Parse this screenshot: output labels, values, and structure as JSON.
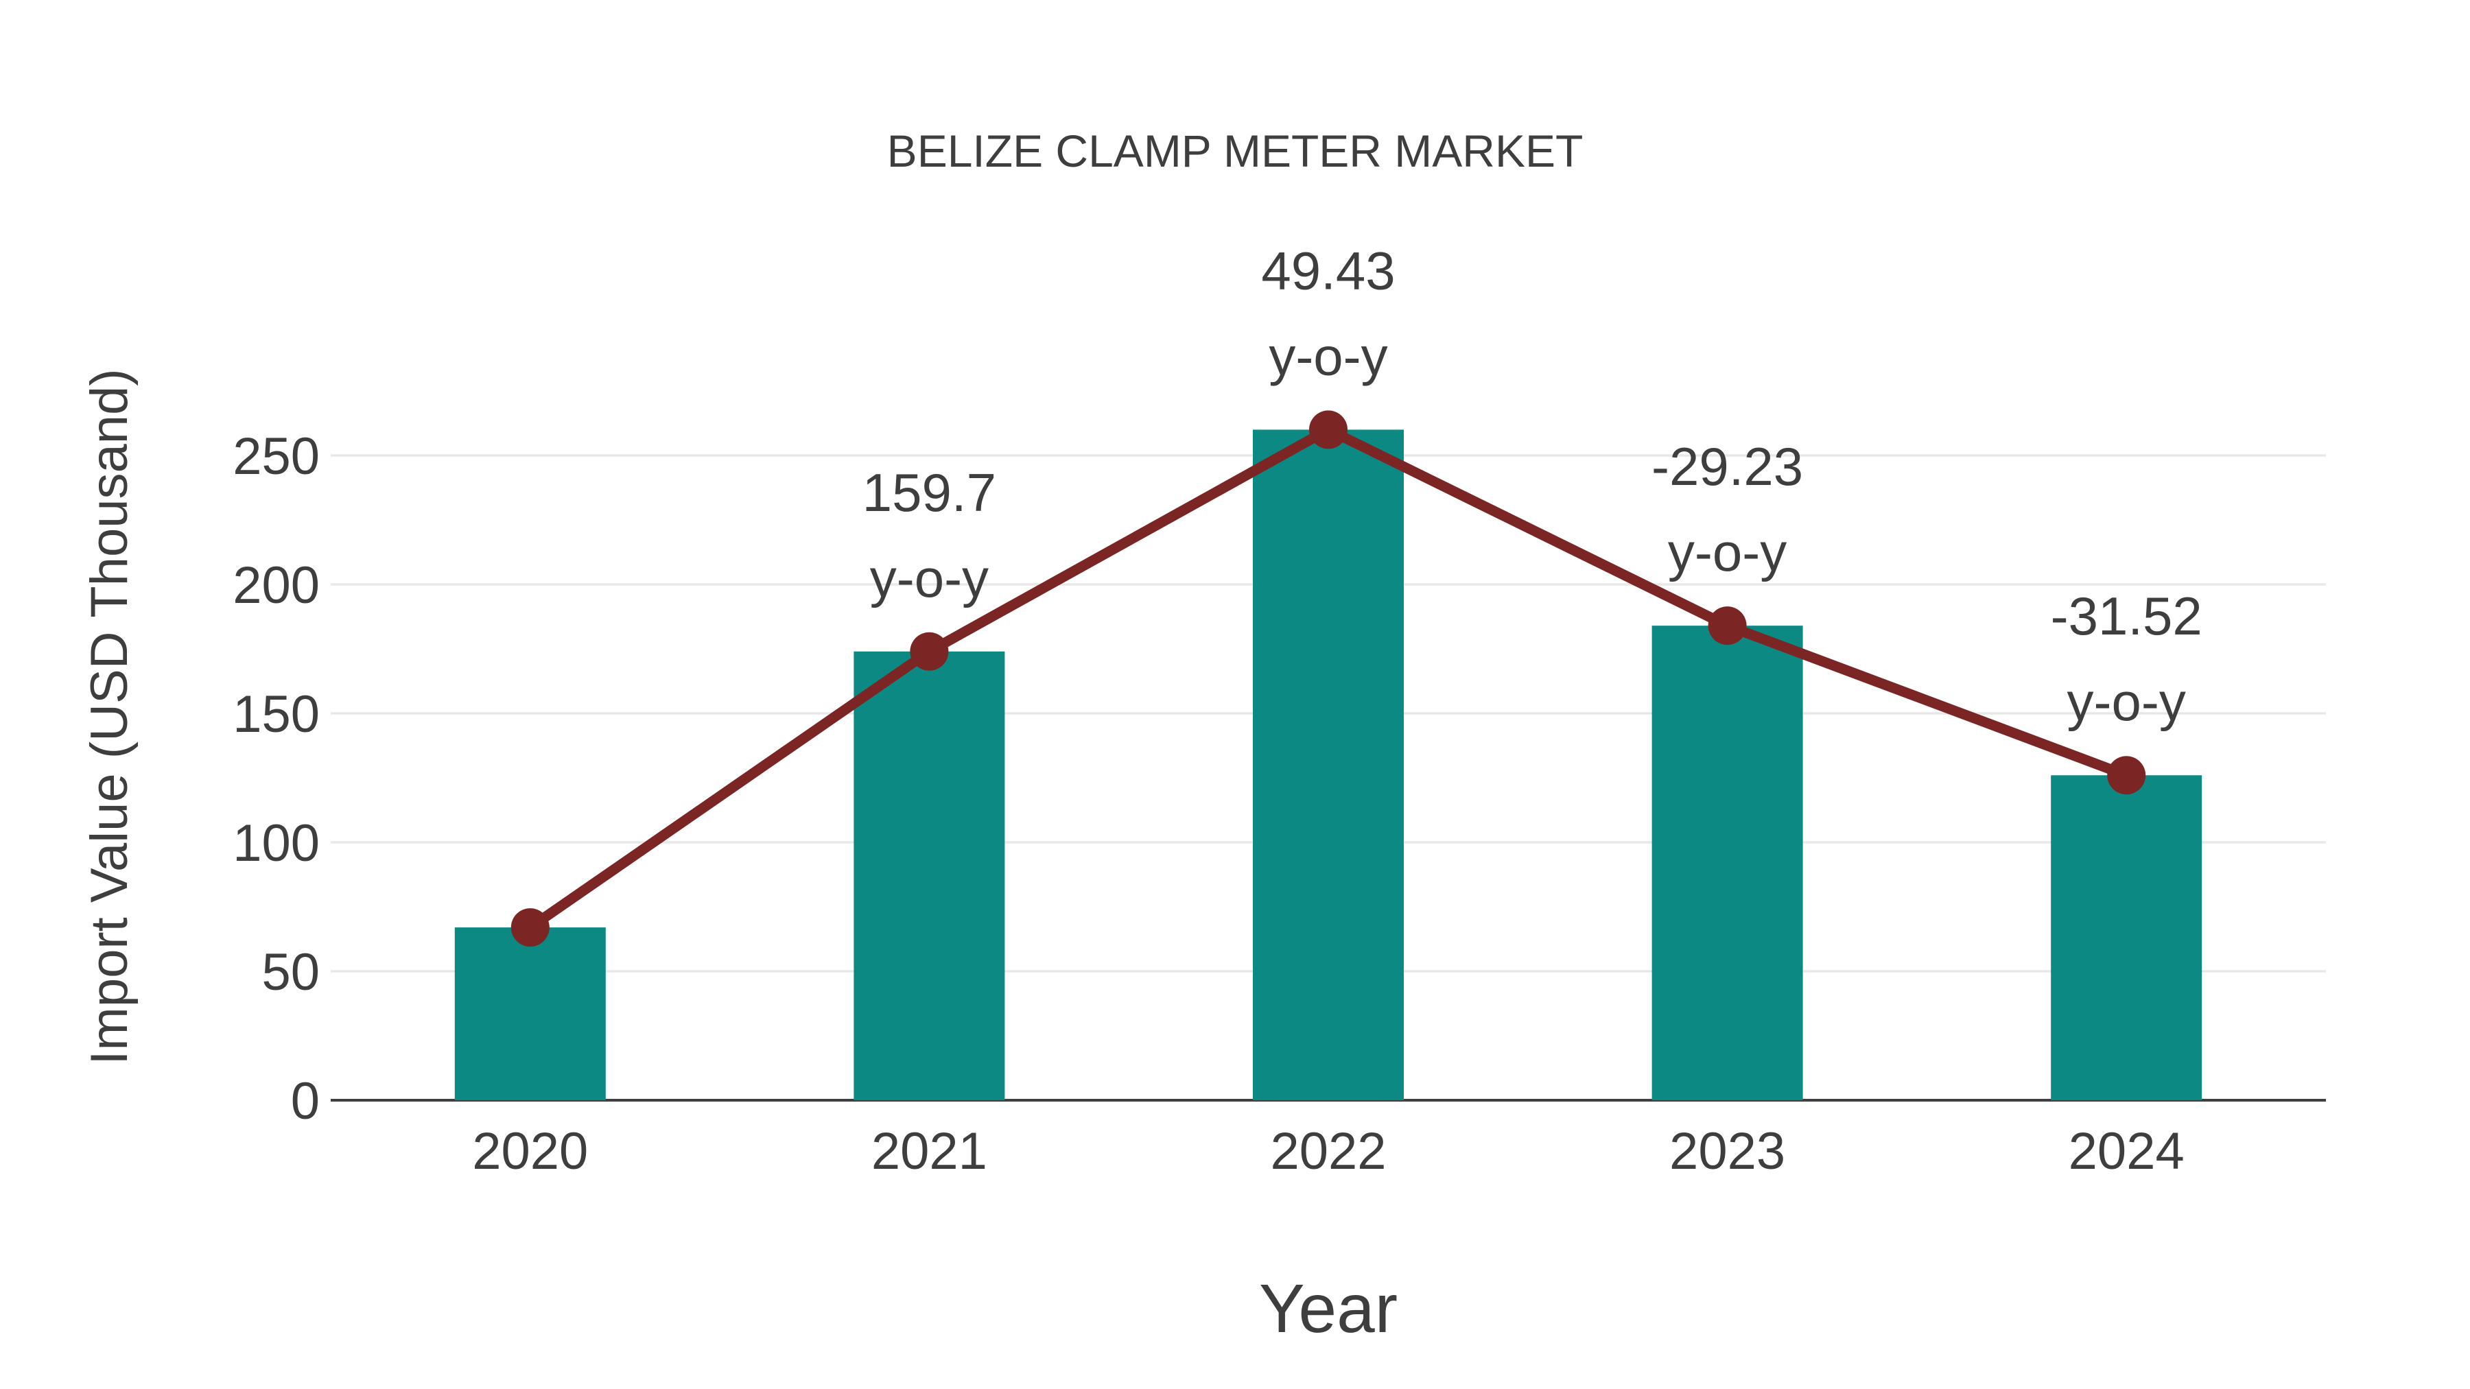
{
  "chart_data": {
    "type": "bar",
    "title": "BELIZE CLAMP METER MARKET",
    "xlabel": "Year",
    "ylabel": "Import Value (USD Thousand)",
    "categories": [
      "2020",
      "2021",
      "2022",
      "2023",
      "2024"
    ],
    "series": [
      {
        "name": "Import Value (USD Thousand)",
        "type": "bar",
        "values": [
          67,
          174,
          260,
          184,
          126
        ],
        "color": "#0d8983"
      },
      {
        "name": "y-o-y trend line",
        "type": "line",
        "plotted_on": "bar_tops",
        "values": [
          67,
          174,
          260,
          184,
          126
        ],
        "color": "#7b2525"
      }
    ],
    "annotations": [
      {
        "category": "2021",
        "value": "159.7",
        "suffix": "y-o-y"
      },
      {
        "category": "2022",
        "value": "49.43",
        "suffix": "y-o-y"
      },
      {
        "category": "2023",
        "value": "-29.23",
        "suffix": "y-o-y"
      },
      {
        "category": "2024",
        "value": "-31.52",
        "suffix": "y-o-y"
      }
    ],
    "yticks": [
      0,
      50,
      100,
      150,
      200,
      250
    ],
    "ylim": [
      0,
      285
    ],
    "grid": "horizontal",
    "legend_position": "none"
  },
  "colors": {
    "background": "#ffffff",
    "bar": "#0d8983",
    "line": "#7b2525",
    "text": "#3e3e3e",
    "gridline": "#e8e8e8",
    "axis": "#3f3f3f"
  }
}
